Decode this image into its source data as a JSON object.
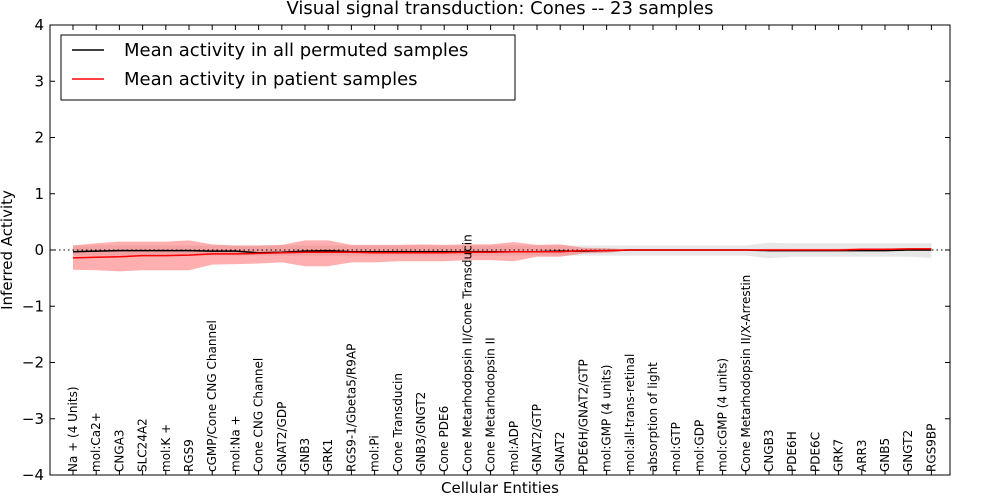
{
  "chart_data": {
    "type": "line",
    "title": "Visual signal transduction: Cones -- 23 samples",
    "xlabel": "Cellular Entities",
    "ylabel": "Inferred Activity",
    "ylim": [
      -4,
      4
    ],
    "yticks": [
      -4,
      -3,
      -2,
      -1,
      0,
      1,
      2,
      3,
      4
    ],
    "ytick_labels": [
      "−4",
      "−3",
      "−2",
      "−1",
      "0",
      "1",
      "2",
      "3",
      "4"
    ],
    "reference_line": 0,
    "categories": [
      "Na + (4 Units)",
      "mol:Ca2+",
      "CNGA3",
      "SLC24A2",
      "mol:K +",
      "RGS9",
      "cGMP/Cone CNG Channel",
      "mol:Na +",
      "Cone CNG Channel",
      "GNAT2/GDP",
      "GNB3",
      "GRK1",
      "RGS9-1/Gbeta5/R9AP",
      "mol:Pi",
      "Cone Transducin",
      "GNB3/GNGT2",
      "Cone PDE6",
      "Cone Metarhodopsin II/Cone Transducin",
      "Cone Metarhodopsin II",
      "mol:ADP",
      "GNAT2/GTP",
      "GNAT2",
      "PDE6H/GNAT2/GTP",
      "mol:GMP (4 units)",
      "mol:all-trans-retinal",
      "absorption of light",
      "mol:GTP",
      "mol:GDP",
      "mol:cGMP (4 units)",
      "Cone Metarhodopsin II/X-Arrestin",
      "CNGB3",
      "PDE6H",
      "PDE6C",
      "GRK7",
      "ARR3",
      "GNB5",
      "GNGT2",
      "RGS9BP"
    ],
    "series": [
      {
        "name": "Mean activity in all permuted samples",
        "color": "#000000",
        "values": [
          -0.03,
          -0.02,
          -0.01,
          -0.01,
          -0.01,
          -0.01,
          -0.02,
          -0.02,
          -0.05,
          -0.04,
          -0.02,
          -0.01,
          -0.03,
          -0.03,
          -0.03,
          -0.03,
          -0.03,
          -0.03,
          -0.03,
          -0.03,
          -0.03,
          -0.02,
          -0.02,
          -0.01,
          0,
          0,
          0,
          0,
          0,
          0,
          -0.01,
          -0.01,
          -0.01,
          -0.01,
          -0.01,
          -0.01,
          0,
          0
        ],
        "band_low": [
          -0.1,
          -0.1,
          -0.1,
          -0.1,
          -0.1,
          -0.1,
          -0.1,
          -0.1,
          -0.1,
          -0.1,
          -0.1,
          -0.1,
          -0.1,
          -0.1,
          -0.1,
          -0.1,
          -0.1,
          -0.1,
          -0.1,
          -0.1,
          -0.1,
          -0.1,
          -0.1,
          -0.1,
          -0.1,
          -0.1,
          -0.1,
          -0.1,
          -0.1,
          -0.1,
          -0.15,
          -0.12,
          -0.12,
          -0.12,
          -0.12,
          -0.12,
          -0.12,
          -0.14
        ],
        "band_high": [
          0.08,
          0.08,
          0.08,
          0.08,
          0.08,
          0.08,
          0.08,
          0.08,
          0.08,
          0.08,
          0.08,
          0.08,
          0.08,
          0.08,
          0.08,
          0.08,
          0.08,
          0.08,
          0.08,
          0.08,
          0.08,
          0.08,
          0.08,
          0.08,
          0.08,
          0.08,
          0.08,
          0.08,
          0.08,
          0.08,
          0.13,
          0.12,
          0.12,
          0.12,
          0.12,
          0.12,
          0.12,
          0.12
        ]
      },
      {
        "name": "Mean activity in patient samples",
        "color": "#ff0000",
        "values": [
          -0.14,
          -0.13,
          -0.12,
          -0.1,
          -0.1,
          -0.09,
          -0.07,
          -0.07,
          -0.06,
          -0.05,
          -0.04,
          -0.04,
          -0.04,
          -0.05,
          -0.05,
          -0.05,
          -0.05,
          -0.04,
          -0.04,
          -0.03,
          -0.03,
          -0.03,
          -0.01,
          -0.01,
          0,
          0,
          0,
          0,
          0,
          0,
          0,
          0,
          0,
          0,
          0.01,
          0.01,
          0.02,
          0.02
        ],
        "band_low": [
          -0.35,
          -0.36,
          -0.38,
          -0.36,
          -0.36,
          -0.36,
          -0.26,
          -0.25,
          -0.24,
          -0.22,
          -0.29,
          -0.29,
          -0.22,
          -0.22,
          -0.2,
          -0.2,
          -0.2,
          -0.18,
          -0.18,
          -0.2,
          -0.12,
          -0.12,
          -0.06,
          -0.05,
          -0.01,
          -0.01,
          -0.01,
          -0.01,
          -0.01,
          -0.01,
          -0.01,
          -0.01,
          -0.01,
          -0.01,
          -0.01,
          -0.01,
          -0.01,
          -0.01
        ],
        "band_high": [
          0.08,
          0.12,
          0.15,
          0.15,
          0.15,
          0.17,
          0.1,
          0.08,
          0.08,
          0.09,
          0.17,
          0.17,
          0.09,
          0.09,
          0.09,
          0.1,
          0.09,
          0.1,
          0.1,
          0.14,
          0.09,
          0.1,
          0.04,
          0.03,
          0.01,
          0.01,
          0.01,
          0.01,
          0.01,
          0.01,
          0.02,
          0.02,
          0.02,
          0.02,
          0.03,
          0.03,
          0.03,
          0.03
        ]
      }
    ],
    "legend": {
      "position": "top-left"
    }
  }
}
